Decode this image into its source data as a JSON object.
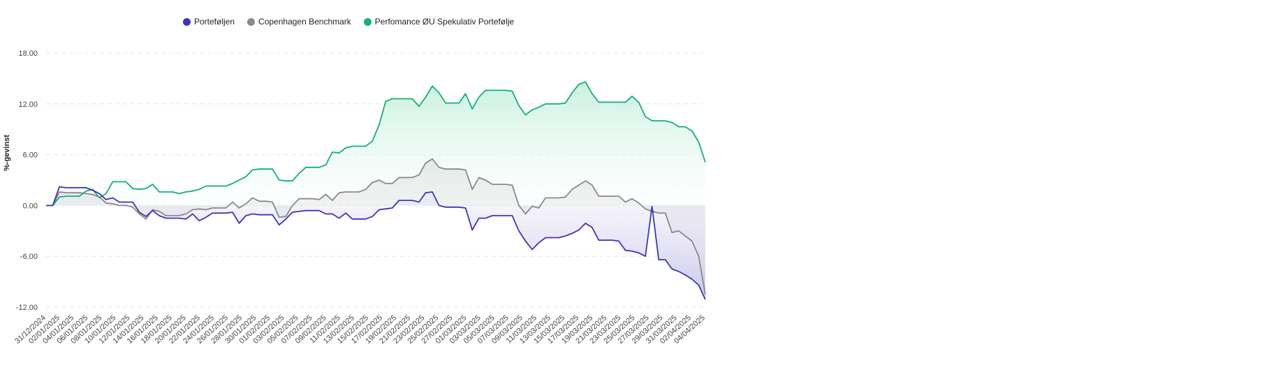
{
  "chart_data": {
    "type": "area",
    "title": "",
    "xlabel": "",
    "ylabel": "%-gevinst",
    "ylim": [
      -12,
      18
    ],
    "yticks": [
      "18.00",
      "12.00",
      "6.00",
      "0.00",
      "-6.00",
      "-12.00"
    ],
    "ytick_values": [
      18,
      12,
      6,
      0,
      -6,
      -12
    ],
    "grid": true,
    "legend_position": "top-left",
    "x_tick_labels": [
      "31/12/2024",
      "02/01/2025",
      "04/01/2025",
      "06/01/2025",
      "08/01/2025",
      "10/01/2025",
      "12/01/2025",
      "14/01/2025",
      "16/01/2025",
      "18/01/2025",
      "20/01/2025",
      "22/01/2025",
      "24/01/2025",
      "26/01/2025",
      "28/01/2025",
      "30/01/2025",
      "01/02/2025",
      "03/02/2025",
      "05/02/2025",
      "07/02/2025",
      "09/02/2025",
      "11/02/2025",
      "13/02/2025",
      "15/02/2025",
      "17/02/2025",
      "19/02/2025",
      "21/02/2025",
      "23/02/2025",
      "25/02/2025",
      "27/02/2025",
      "01/03/2025",
      "03/03/2025",
      "05/03/2025",
      "07/03/2025",
      "09/03/2025",
      "11/03/2025",
      "13/03/2025",
      "15/03/2025",
      "17/03/2025",
      "19/03/2025",
      "21/03/2025",
      "23/03/2025",
      "25/03/2025",
      "27/03/2025",
      "29/03/2025",
      "31/03/2025",
      "02/04/2025",
      "04/04/2025"
    ],
    "series": [
      {
        "name": "Porteføljen",
        "color": "#3d35b8",
        "fill_top": "#e3e1f4",
        "fill_bottom": "#b9b4e3",
        "points": [
          [
            0,
            0
          ],
          [
            1,
            0
          ],
          [
            2,
            2.2
          ],
          [
            3,
            2.1
          ],
          [
            4,
            2.1
          ],
          [
            5,
            2.1
          ],
          [
            6,
            2.1
          ],
          [
            7,
            1.8
          ],
          [
            8,
            1.4
          ],
          [
            9,
            0.7
          ],
          [
            10,
            0.9
          ],
          [
            11,
            0.4
          ],
          [
            12,
            0.4
          ],
          [
            13,
            0.4
          ],
          [
            14,
            -0.8
          ],
          [
            15,
            -1.3
          ],
          [
            16,
            -0.6
          ],
          [
            17,
            -1.2
          ],
          [
            18,
            -1.5
          ],
          [
            19,
            -1.5
          ],
          [
            20,
            -1.5
          ],
          [
            21,
            -1.6
          ],
          [
            22,
            -1.0
          ],
          [
            23,
            -1.8
          ],
          [
            24,
            -1.4
          ],
          [
            25,
            -0.9
          ],
          [
            26,
            -0.9
          ],
          [
            27,
            -0.9
          ],
          [
            28,
            -0.8
          ],
          [
            29,
            -2.1
          ],
          [
            30,
            -1.2
          ],
          [
            31,
            -1.0
          ],
          [
            32,
            -1.1
          ],
          [
            33,
            -1.1
          ],
          [
            34,
            -1.1
          ],
          [
            35,
            -2.3
          ],
          [
            36,
            -1.6
          ],
          [
            37,
            -0.8
          ],
          [
            38,
            -0.7
          ],
          [
            39,
            -0.6
          ],
          [
            40,
            -0.6
          ],
          [
            41,
            -0.6
          ],
          [
            42,
            -1.0
          ],
          [
            43,
            -1.0
          ],
          [
            44,
            -1.5
          ],
          [
            45,
            -0.9
          ],
          [
            46,
            -1.6
          ],
          [
            47,
            -1.6
          ],
          [
            48,
            -1.6
          ],
          [
            49,
            -1.3
          ],
          [
            50,
            -0.5
          ],
          [
            51,
            -0.4
          ],
          [
            52,
            -0.3
          ],
          [
            53,
            0.6
          ],
          [
            54,
            0.6
          ],
          [
            55,
            0.6
          ],
          [
            56,
            0.4
          ],
          [
            57,
            1.5
          ],
          [
            58,
            1.6
          ],
          [
            59,
            0.0
          ],
          [
            60,
            -0.2
          ],
          [
            61,
            -0.2
          ],
          [
            62,
            -0.2
          ],
          [
            63,
            -0.3
          ],
          [
            64,
            -2.9
          ],
          [
            65,
            -1.5
          ],
          [
            66,
            -1.5
          ],
          [
            67,
            -1.2
          ],
          [
            68,
            -1.2
          ],
          [
            69,
            -1.2
          ],
          [
            70,
            -1.2
          ],
          [
            71,
            -3.0
          ],
          [
            72,
            -4.2
          ],
          [
            73,
            -5.2
          ],
          [
            74,
            -4.4
          ],
          [
            75,
            -3.8
          ],
          [
            76,
            -3.8
          ],
          [
            77,
            -3.8
          ],
          [
            78,
            -3.6
          ],
          [
            79,
            -3.3
          ],
          [
            80,
            -2.9
          ],
          [
            81,
            -2.1
          ],
          [
            82,
            -2.6
          ],
          [
            83,
            -4.1
          ],
          [
            84,
            -4.1
          ],
          [
            85,
            -4.1
          ],
          [
            86,
            -4.2
          ],
          [
            87,
            -5.3
          ],
          [
            88,
            -5.4
          ],
          [
            89,
            -5.6
          ],
          [
            90,
            -6.0
          ],
          [
            91,
            -0.1
          ],
          [
            92,
            -6.4
          ],
          [
            93,
            -6.4
          ],
          [
            94,
            -7.5
          ],
          [
            95,
            -7.8
          ],
          [
            96,
            -8.2
          ],
          [
            97,
            -8.7
          ],
          [
            98,
            -9.4
          ],
          [
            99,
            -11.1
          ]
        ]
      },
      {
        "name": "Copenhagen Benchmark",
        "color": "#8a8a8a",
        "fill_top": "#dcdcdc",
        "fill_bottom": "#f4f4f4",
        "points": [
          [
            0,
            0
          ],
          [
            1,
            0
          ],
          [
            2,
            1.6
          ],
          [
            3,
            1.5
          ],
          [
            4,
            1.5
          ],
          [
            5,
            1.5
          ],
          [
            6,
            1.4
          ],
          [
            7,
            1.3
          ],
          [
            8,
            1.0
          ],
          [
            9,
            0.3
          ],
          [
            10,
            0.2
          ],
          [
            11,
            0.0
          ],
          [
            12,
            0.0
          ],
          [
            13,
            -0.2
          ],
          [
            14,
            -1.0
          ],
          [
            15,
            -1.6
          ],
          [
            16,
            -0.5
          ],
          [
            17,
            -0.7
          ],
          [
            18,
            -1.2
          ],
          [
            19,
            -1.2
          ],
          [
            20,
            -1.2
          ],
          [
            21,
            -1.0
          ],
          [
            22,
            -0.5
          ],
          [
            23,
            -0.4
          ],
          [
            24,
            -0.5
          ],
          [
            25,
            -0.3
          ],
          [
            26,
            -0.3
          ],
          [
            27,
            -0.3
          ],
          [
            28,
            0.4
          ],
          [
            29,
            -0.3
          ],
          [
            30,
            0.2
          ],
          [
            31,
            0.9
          ],
          [
            32,
            0.5
          ],
          [
            33,
            0.5
          ],
          [
            34,
            0.4
          ],
          [
            35,
            -1.4
          ],
          [
            36,
            -1.3
          ],
          [
            37,
            0.0
          ],
          [
            38,
            0.8
          ],
          [
            39,
            0.8
          ],
          [
            40,
            0.8
          ],
          [
            41,
            0.7
          ],
          [
            42,
            1.3
          ],
          [
            43,
            0.6
          ],
          [
            44,
            1.5
          ],
          [
            45,
            1.6
          ],
          [
            46,
            1.6
          ],
          [
            47,
            1.6
          ],
          [
            48,
            1.9
          ],
          [
            49,
            2.7
          ],
          [
            50,
            3.0
          ],
          [
            51,
            2.6
          ],
          [
            52,
            2.6
          ],
          [
            53,
            3.3
          ],
          [
            54,
            3.3
          ],
          [
            55,
            3.3
          ],
          [
            56,
            3.6
          ],
          [
            57,
            5.0
          ],
          [
            58,
            5.5
          ],
          [
            59,
            4.5
          ],
          [
            60,
            4.3
          ],
          [
            61,
            4.3
          ],
          [
            62,
            4.3
          ],
          [
            63,
            4.2
          ],
          [
            64,
            1.9
          ],
          [
            65,
            3.3
          ],
          [
            66,
            3.0
          ],
          [
            67,
            2.5
          ],
          [
            68,
            2.5
          ],
          [
            69,
            2.5
          ],
          [
            70,
            2.4
          ],
          [
            71,
            0.0
          ],
          [
            72,
            -1.0
          ],
          [
            73,
            -0.1
          ],
          [
            74,
            -0.3
          ],
          [
            75,
            0.9
          ],
          [
            76,
            0.9
          ],
          [
            77,
            0.9
          ],
          [
            78,
            1.0
          ],
          [
            79,
            1.9
          ],
          [
            80,
            2.4
          ],
          [
            81,
            2.9
          ],
          [
            82,
            2.4
          ],
          [
            83,
            1.1
          ],
          [
            84,
            1.1
          ],
          [
            85,
            1.1
          ],
          [
            86,
            1.1
          ],
          [
            87,
            0.4
          ],
          [
            88,
            0.8
          ],
          [
            89,
            0.3
          ],
          [
            90,
            -0.4
          ],
          [
            91,
            -0.7
          ],
          [
            92,
            -0.9
          ],
          [
            93,
            -0.9
          ],
          [
            94,
            -3.2
          ],
          [
            95,
            -3.0
          ],
          [
            96,
            -3.6
          ],
          [
            97,
            -4.2
          ],
          [
            98,
            -6.0
          ],
          [
            99,
            -10.5
          ]
        ]
      },
      {
        "name": "Perfomance ØU Spekulativ Portefølje",
        "color": "#12b07a",
        "fill_top": "#b8ecd6",
        "fill_bottom": "#f4fcf8",
        "points": [
          [
            0,
            0
          ],
          [
            1,
            0
          ],
          [
            2,
            1.0
          ],
          [
            3,
            1.1
          ],
          [
            4,
            1.1
          ],
          [
            5,
            1.1
          ],
          [
            6,
            1.7
          ],
          [
            7,
            1.9
          ],
          [
            8,
            0.9
          ],
          [
            9,
            1.4
          ],
          [
            10,
            2.8
          ],
          [
            11,
            2.8
          ],
          [
            12,
            2.8
          ],
          [
            13,
            2.0
          ],
          [
            14,
            1.9
          ],
          [
            15,
            2.0
          ],
          [
            16,
            2.5
          ],
          [
            17,
            1.6
          ],
          [
            18,
            1.6
          ],
          [
            19,
            1.6
          ],
          [
            20,
            1.4
          ],
          [
            21,
            1.6
          ],
          [
            22,
            1.7
          ],
          [
            23,
            1.9
          ],
          [
            24,
            2.3
          ],
          [
            25,
            2.3
          ],
          [
            26,
            2.3
          ],
          [
            27,
            2.3
          ],
          [
            28,
            2.6
          ],
          [
            29,
            3.0
          ],
          [
            30,
            3.4
          ],
          [
            31,
            4.2
          ],
          [
            32,
            4.3
          ],
          [
            33,
            4.3
          ],
          [
            34,
            4.3
          ],
          [
            35,
            3.0
          ],
          [
            36,
            2.9
          ],
          [
            37,
            2.9
          ],
          [
            38,
            3.8
          ],
          [
            39,
            4.5
          ],
          [
            40,
            4.5
          ],
          [
            41,
            4.5
          ],
          [
            42,
            4.8
          ],
          [
            43,
            6.3
          ],
          [
            44,
            6.2
          ],
          [
            45,
            6.8
          ],
          [
            46,
            7.0
          ],
          [
            47,
            7.0
          ],
          [
            48,
            7.0
          ],
          [
            49,
            7.6
          ],
          [
            50,
            9.5
          ],
          [
            51,
            12.3
          ],
          [
            52,
            12.6
          ],
          [
            53,
            12.6
          ],
          [
            54,
            12.6
          ],
          [
            55,
            12.6
          ],
          [
            56,
            11.7
          ],
          [
            57,
            12.8
          ],
          [
            58,
            14.1
          ],
          [
            59,
            13.3
          ],
          [
            60,
            12.1
          ],
          [
            61,
            12.1
          ],
          [
            62,
            12.1
          ],
          [
            63,
            13.2
          ],
          [
            64,
            11.4
          ],
          [
            65,
            12.8
          ],
          [
            66,
            13.6
          ],
          [
            67,
            13.6
          ],
          [
            68,
            13.6
          ],
          [
            69,
            13.6
          ],
          [
            70,
            13.5
          ],
          [
            71,
            11.8
          ],
          [
            72,
            10.7
          ],
          [
            73,
            11.3
          ],
          [
            74,
            11.6
          ],
          [
            75,
            12.0
          ],
          [
            76,
            12.0
          ],
          [
            77,
            12.0
          ],
          [
            78,
            12.1
          ],
          [
            79,
            13.3
          ],
          [
            80,
            14.3
          ],
          [
            81,
            14.6
          ],
          [
            82,
            13.2
          ],
          [
            83,
            12.2
          ],
          [
            84,
            12.2
          ],
          [
            85,
            12.2
          ],
          [
            86,
            12.2
          ],
          [
            87,
            12.2
          ],
          [
            88,
            12.9
          ],
          [
            89,
            12.2
          ],
          [
            90,
            10.5
          ],
          [
            91,
            10.0
          ],
          [
            92,
            10.0
          ],
          [
            93,
            10.0
          ],
          [
            94,
            9.8
          ],
          [
            95,
            9.3
          ],
          [
            96,
            9.3
          ],
          [
            97,
            8.8
          ],
          [
            98,
            7.5
          ],
          [
            99,
            5.1
          ]
        ]
      }
    ]
  }
}
